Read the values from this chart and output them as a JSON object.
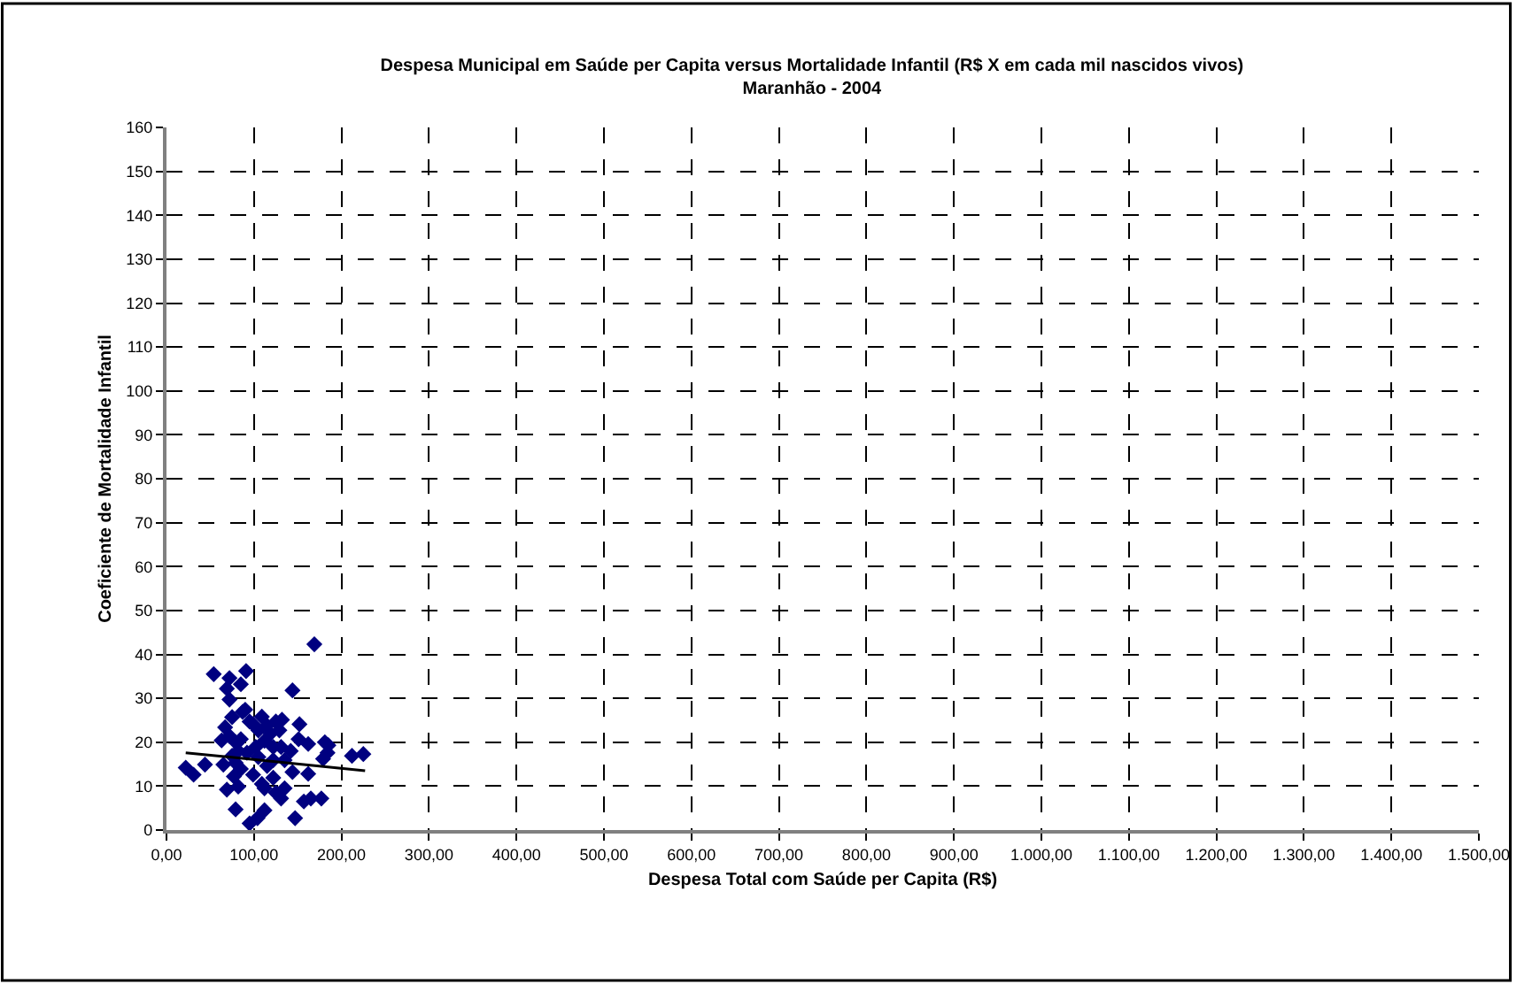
{
  "chart_data": {
    "type": "scatter",
    "title": "Despesa Municipal em Saúde per Capita versus Mortalidade Infantil (R$ X em cada mil nascidos vivos)\nMaranhão - 2004",
    "xlabel": "Despesa Total com Saúde per Capita (R$)",
    "ylabel": "Coeficiente de Mortalidade Infantil",
    "xlim": [
      0,
      1500
    ],
    "ylim": [
      0,
      160
    ],
    "xticks": [
      {
        "value": 0,
        "label": "0,00"
      },
      {
        "value": 100,
        "label": "100,00"
      },
      {
        "value": 200,
        "label": "200,00"
      },
      {
        "value": 300,
        "label": "300,00"
      },
      {
        "value": 400,
        "label": "400,00"
      },
      {
        "value": 500,
        "label": "500,00"
      },
      {
        "value": 600,
        "label": "600,00"
      },
      {
        "value": 700,
        "label": "700,00"
      },
      {
        "value": 800,
        "label": "800,00"
      },
      {
        "value": 900,
        "label": "900,00"
      },
      {
        "value": 1000,
        "label": "1.000,00"
      },
      {
        "value": 1100,
        "label": "1.100,00"
      },
      {
        "value": 1200,
        "label": "1.200,00"
      },
      {
        "value": 1300,
        "label": "1.300,00"
      },
      {
        "value": 1400,
        "label": "1.400,00"
      },
      {
        "value": 1500,
        "label": "1.500,00"
      }
    ],
    "yticks": [
      0,
      10,
      20,
      30,
      40,
      50,
      60,
      70,
      80,
      90,
      100,
      110,
      120,
      130,
      140,
      150,
      160
    ],
    "grid": true,
    "marker": "diamond",
    "series": [
      {
        "color": "#000080",
        "x": [
          22,
          31,
          44,
          54,
          72,
          69,
          72,
          91,
          85,
          90,
          87,
          75,
          67,
          63,
          72,
          79,
          85,
          95,
          99,
          109,
          105,
          115,
          119,
          125,
          132,
          129,
          131,
          122,
          112,
          102,
          92,
          82,
          75,
          65,
          79,
          85,
          77,
          82,
          69,
          99,
          109,
          112,
          122,
          125,
          131,
          135,
          79,
          95,
          104,
          112,
          144,
          169,
          152,
          151,
          142,
          144,
          162,
          162,
          147,
          157,
          165,
          177,
          181,
          185,
          184,
          179,
          212,
          225,
          135,
          122,
          105,
          115
        ],
        "values": [
          14.2,
          12.6,
          14.9,
          35.5,
          34.6,
          32.2,
          29.7,
          36.2,
          33.2,
          27.4,
          26.9,
          25.7,
          23.4,
          20.4,
          21.4,
          20.0,
          20.7,
          24.7,
          24.1,
          25.8,
          22.7,
          23.8,
          22.0,
          24.7,
          25.1,
          22.7,
          18.9,
          18.9,
          20.3,
          18.9,
          17.6,
          18.0,
          16.9,
          14.9,
          15.3,
          13.9,
          12.2,
          9.9,
          9.2,
          12.6,
          10.5,
          9.5,
          11.9,
          8.5,
          7.2,
          9.5,
          4.7,
          1.5,
          2.7,
          4.5,
          31.8,
          42.3,
          24.1,
          20.7,
          18.0,
          13.2,
          19.6,
          12.8,
          2.7,
          6.5,
          7.2,
          7.2,
          20.0,
          19.3,
          17.6,
          16.2,
          16.9,
          17.3,
          15.9,
          15.9,
          16.6,
          14.6
        ]
      },
      {
        "type": "line",
        "color": "#000000",
        "marker": "none",
        "x": [
          22,
          227
        ],
        "values": [
          17.6,
          13.5
        ]
      }
    ]
  }
}
